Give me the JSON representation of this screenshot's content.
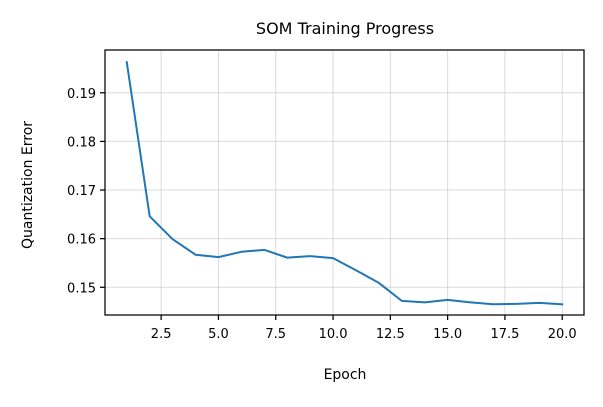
{
  "chart_data": {
    "type": "line",
    "title": "SOM Training Progress",
    "xlabel": "Epoch",
    "ylabel": "Quantization Error",
    "xlim": [
      0.05,
      20.95
    ],
    "ylim": [
      0.1443,
      0.1988
    ],
    "grid": true,
    "legend": null,
    "xticks": [
      2.5,
      5.0,
      7.5,
      10.0,
      12.5,
      15.0,
      17.5,
      20.0
    ],
    "xtick_labels": [
      "2.5",
      "5.0",
      "7.5",
      "10.0",
      "12.5",
      "15.0",
      "17.5",
      "20.0"
    ],
    "yticks": [
      0.15,
      0.16,
      0.17,
      0.18,
      0.19
    ],
    "ytick_labels": [
      "0.15",
      "0.16",
      "0.17",
      "0.18",
      "0.19"
    ],
    "series": [
      {
        "name": "Quantization Error",
        "color": "#1f77b4",
        "x": [
          1,
          2,
          3,
          4,
          5,
          6,
          7,
          8,
          9,
          10,
          11,
          12,
          13,
          14,
          15,
          16,
          17,
          18,
          19,
          20
        ],
        "y": [
          0.1963,
          0.1646,
          0.1599,
          0.1567,
          0.1562,
          0.1573,
          0.1577,
          0.1561,
          0.1564,
          0.156,
          0.1535,
          0.1509,
          0.1472,
          0.1469,
          0.1474,
          0.1469,
          0.1465,
          0.1466,
          0.1468,
          0.1465
        ]
      }
    ]
  }
}
